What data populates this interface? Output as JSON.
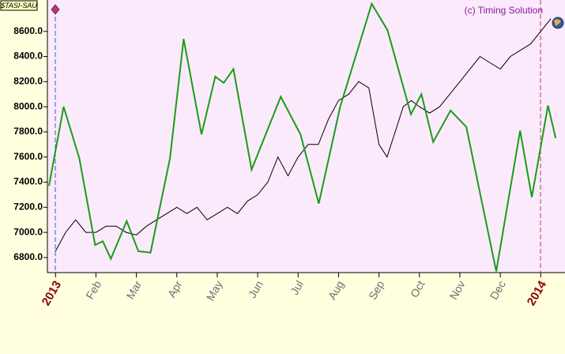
{
  "chart_data": {
    "type": "line",
    "title": "(c) Timing Solution",
    "symbol": "$TASI-SAU",
    "xlim": [
      -0.2,
      12.6
    ],
    "xticks": [
      {
        "value": 0,
        "label": "2013"
      },
      {
        "value": 1,
        "label": "Feb"
      },
      {
        "value": 2,
        "label": "Mar"
      },
      {
        "value": 3,
        "label": "Apr"
      },
      {
        "value": 4,
        "label": "May"
      },
      {
        "value": 5,
        "label": "Jun"
      },
      {
        "value": 6,
        "label": "Jul"
      },
      {
        "value": 7,
        "label": "Aug"
      },
      {
        "value": 8,
        "label": "Sep"
      },
      {
        "value": 9,
        "label": "Oct"
      },
      {
        "value": 10,
        "label": "Nov"
      },
      {
        "value": 11,
        "label": "Dec"
      },
      {
        "value": 12,
        "label": "2014"
      }
    ],
    "ylim": [
      6680,
      8850
    ],
    "yticks": [
      {
        "value": 6800,
        "label": "6800.0"
      },
      {
        "value": 7000,
        "label": "7000.0"
      },
      {
        "value": 7200,
        "label": "7200.0"
      },
      {
        "value": 7400,
        "label": "7400.0"
      },
      {
        "value": 7600,
        "label": "7600.0"
      },
      {
        "value": 7800,
        "label": "7800.0"
      },
      {
        "value": 8000,
        "label": "8000.0"
      },
      {
        "value": 8200,
        "label": "8200.0"
      },
      {
        "value": 8400,
        "label": "8400.0"
      },
      {
        "value": 8600,
        "label": "8600.0"
      }
    ],
    "series": [
      {
        "color": "#000000",
        "x": [
          0,
          0.25,
          0.5,
          0.75,
          1,
          1.25,
          1.5,
          1.75,
          2,
          2.25,
          2.5,
          2.75,
          3,
          3.25,
          3.5,
          3.75,
          4,
          4.25,
          4.5,
          4.75,
          5,
          5.25,
          5.5,
          5.75,
          6,
          6.25,
          6.5,
          6.75,
          7,
          7.25,
          7.5,
          7.75,
          8,
          8.2,
          8.4,
          8.6,
          8.8,
          9,
          9.25,
          9.5,
          9.75,
          10,
          10.25,
          10.5,
          10.75,
          11,
          11.25,
          11.5,
          11.75,
          12,
          12.25
        ],
        "values": [
          6850,
          7000,
          7100,
          7000,
          7000,
          7050,
          7050,
          7000,
          6980,
          7050,
          7100,
          7150,
          7200,
          7150,
          7200,
          7100,
          7150,
          7200,
          7150,
          7250,
          7300,
          7400,
          7600,
          7450,
          7600,
          7700,
          7700,
          7900,
          8050,
          8100,
          8200,
          8150,
          7700,
          7600,
          7800,
          8000,
          8050,
          8000,
          7950,
          8000,
          8100,
          8200,
          8300,
          8400,
          8350,
          8300,
          8400,
          8450,
          8500,
          8600,
          8700
        ]
      },
      {
        "color": "#1a9c1a",
        "x": [
          -0.16,
          0.2,
          0.59,
          0.98,
          1.17,
          1.37,
          1.76,
          2.05,
          2.35,
          2.83,
          3.17,
          3.61,
          3.95,
          4.16,
          4.4,
          4.85,
          5.57,
          6.06,
          6.51,
          7.04,
          7.82,
          8.21,
          8.79,
          9.05,
          9.34,
          9.77,
          10.16,
          10.9,
          11.49,
          11.78,
          12.18,
          12.37
        ],
        "values": [
          7370,
          8000,
          7590,
          6900,
          6930,
          6790,
          7090,
          6850,
          6840,
          7590,
          8540,
          7780,
          8240,
          8190,
          8300,
          7500,
          8080,
          7780,
          7230,
          8000,
          8820,
          8610,
          7940,
          8100,
          7720,
          7970,
          7840,
          6690,
          7810,
          7280,
          8010,
          7750
        ]
      }
    ]
  }
}
